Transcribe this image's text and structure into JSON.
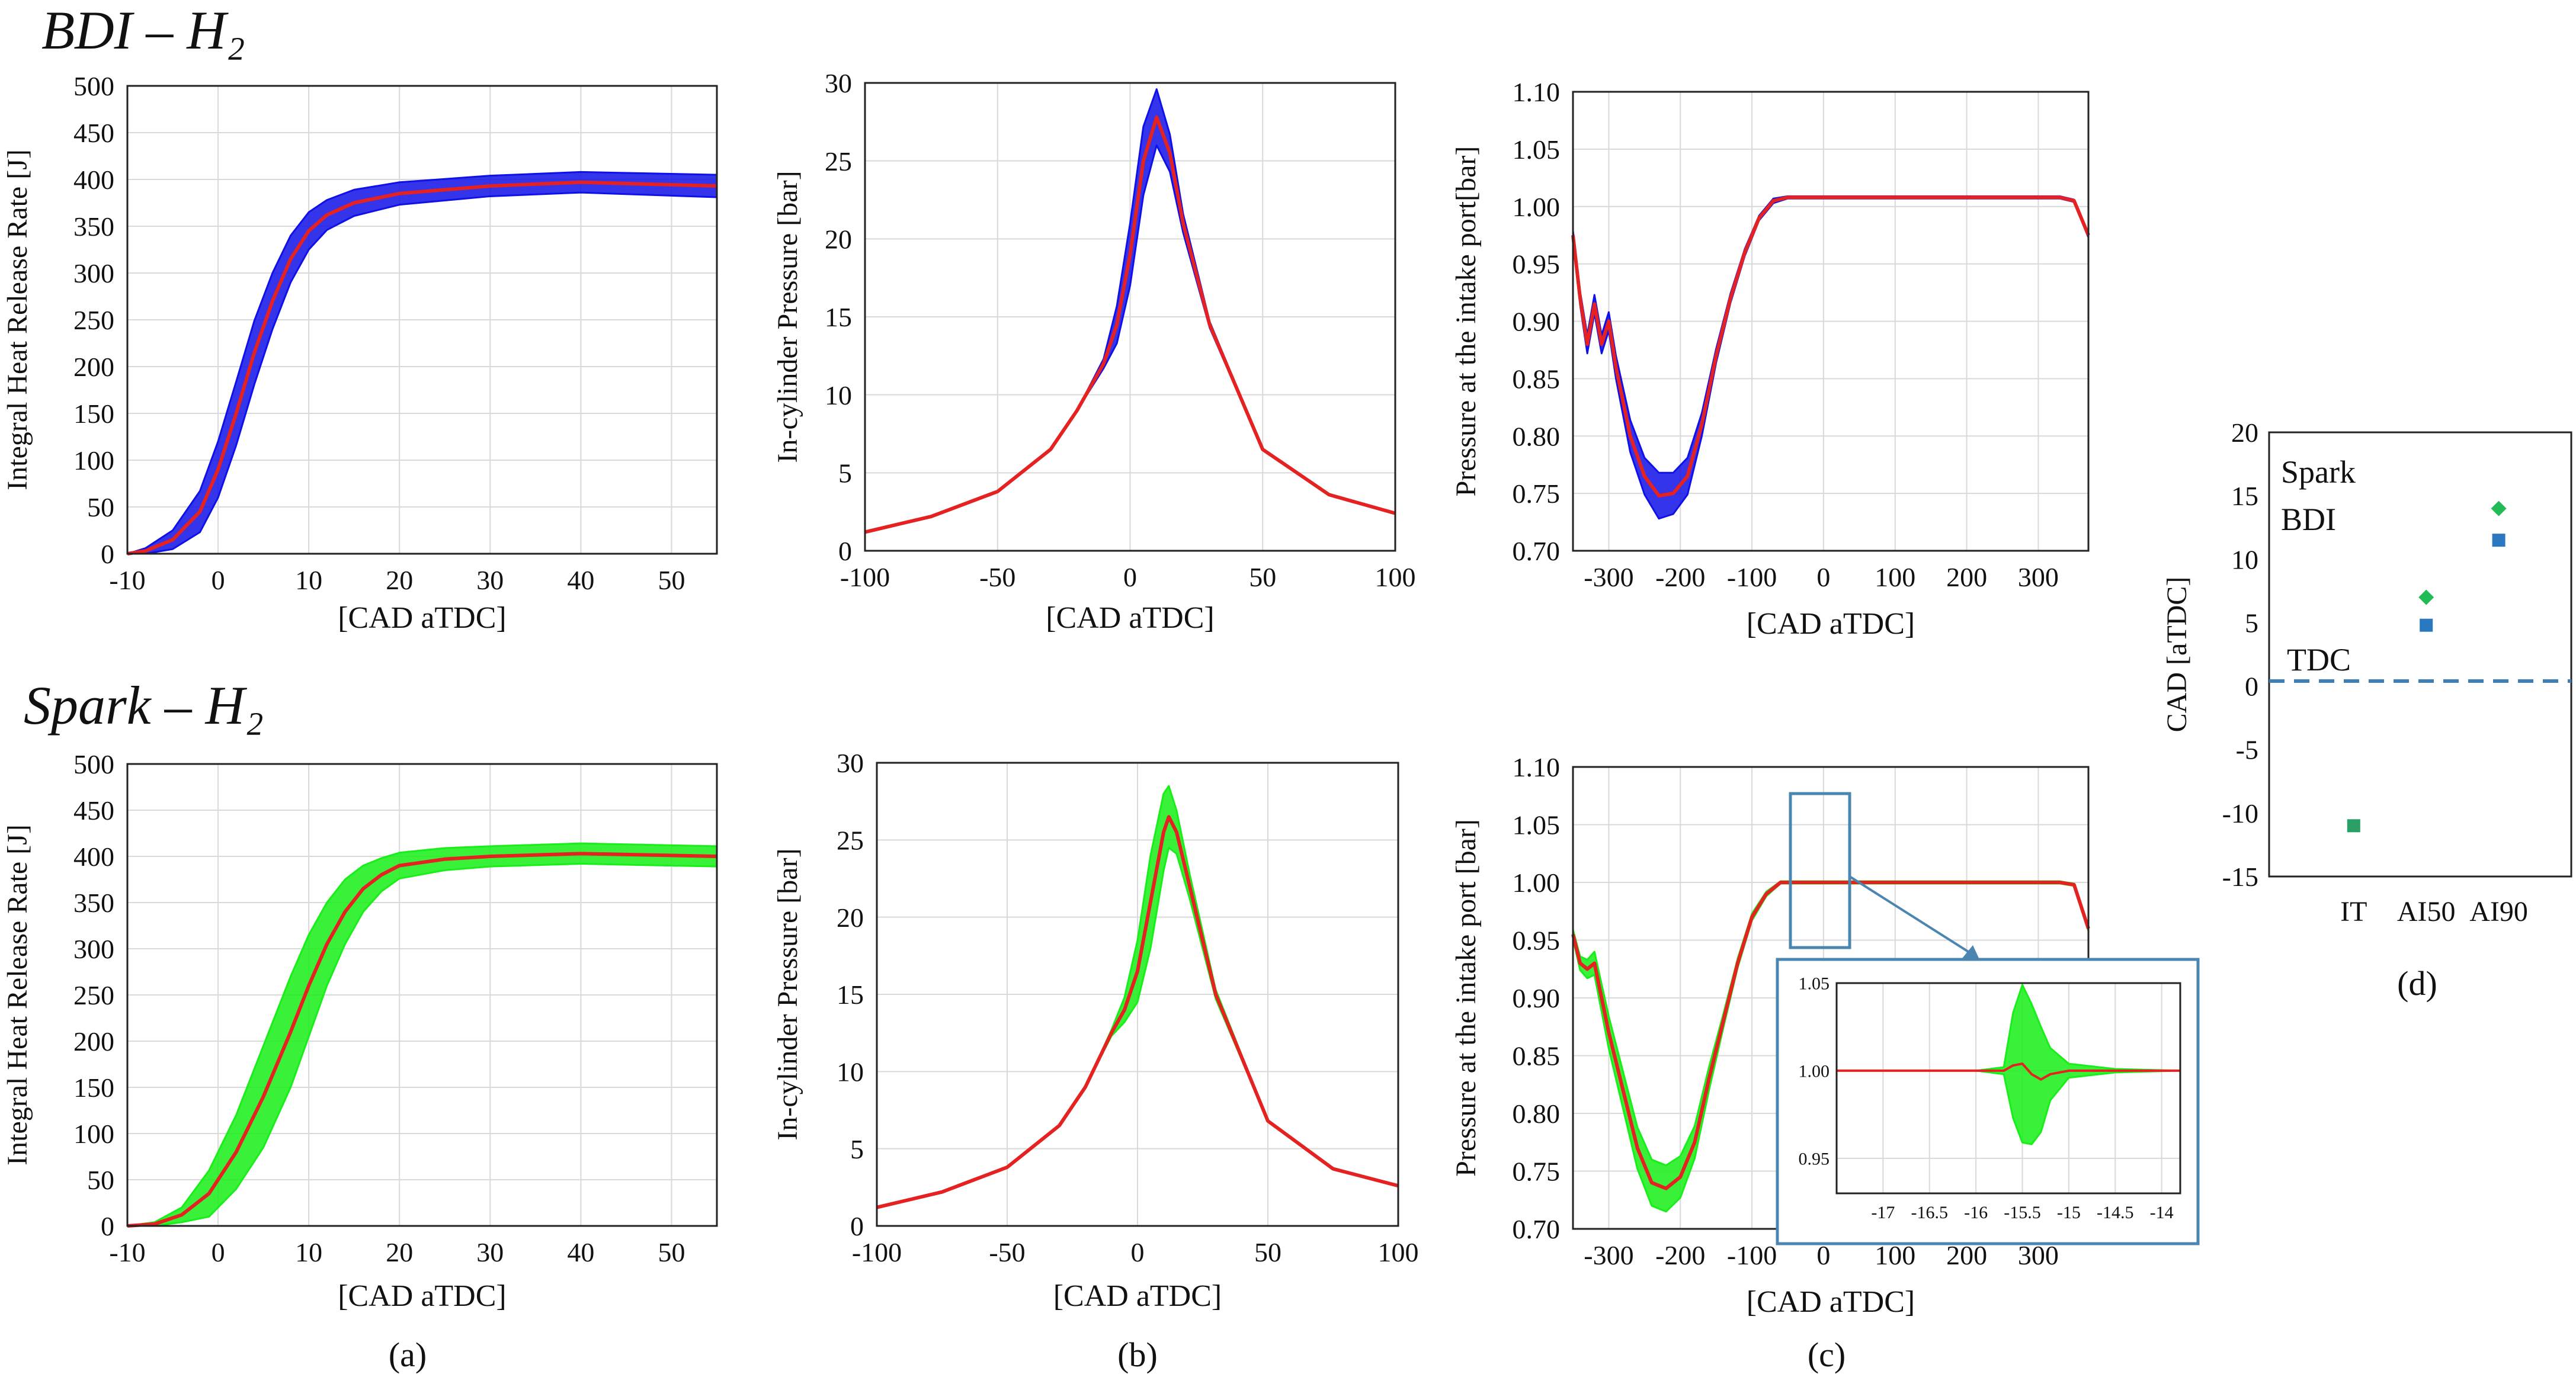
{
  "colors": {
    "bdi_band": "#1010e8",
    "spark_band": "#18ee18",
    "mean_line": "#e52222",
    "spark_title": "#27c84a",
    "bdi_title": "#2a6fb8",
    "tdc_line": "#3d7fb6",
    "inset_frame": "#4b86b0"
  },
  "rows": {
    "bdi_title": "BDI – H₂",
    "spark_title": "Spark – H₂"
  },
  "captions": [
    "(a)",
    "(b)",
    "(c)",
    "(d)"
  ],
  "chart_data": [
    {
      "id": "bdi_heat",
      "type": "line",
      "band": "bdi",
      "xlabel": "[CAD aTDC]",
      "ylabel": "Integral Heat Release Rate [J]",
      "xlim": [
        -10,
        55
      ],
      "ylim": [
        0,
        500
      ],
      "xticks": [
        -10,
        0,
        10,
        20,
        30,
        40,
        50
      ],
      "yticks": [
        0,
        50,
        100,
        150,
        200,
        250,
        300,
        350,
        400,
        450,
        500
      ],
      "series": [
        {
          "name": "mean",
          "x": [
            -10,
            -8,
            -5,
            -2,
            0,
            2,
            4,
            6,
            8,
            10,
            12,
            15,
            20,
            30,
            40,
            55
          ],
          "y": [
            0,
            3,
            15,
            45,
            90,
            150,
            215,
            270,
            315,
            345,
            362,
            375,
            385,
            393,
            397,
            393
          ]
        }
      ],
      "band_spread": [
        0,
        3,
        10,
        22,
        30,
        34,
        34,
        30,
        25,
        20,
        16,
        14,
        12,
        11,
        11,
        12
      ]
    },
    {
      "id": "bdi_pressure",
      "type": "line",
      "band": "bdi",
      "xlabel": "[CAD aTDC]",
      "ylabel": "In-cylinder Pressure [bar]",
      "xlim": [
        -100,
        100
      ],
      "ylim": [
        0,
        30
      ],
      "xticks": [
        -100,
        -50,
        0,
        50,
        100
      ],
      "yticks": [
        0,
        5,
        10,
        15,
        20,
        25,
        30
      ],
      "series": [
        {
          "name": "mean",
          "x": [
            -100,
            -75,
            -50,
            -30,
            -20,
            -10,
            -5,
            0,
            5,
            10,
            15,
            20,
            30,
            50,
            75,
            100
          ],
          "y": [
            1.2,
            2.2,
            3.8,
            6.5,
            9,
            12,
            14.5,
            19,
            25,
            27.8,
            25.5,
            21,
            14.5,
            6.5,
            3.6,
            2.4
          ]
        }
      ],
      "band_spread": [
        0,
        0,
        0,
        0,
        0,
        0.3,
        1.2,
        2,
        2.2,
        1.8,
        1.2,
        0.6,
        0.2,
        0,
        0,
        0
      ]
    },
    {
      "id": "bdi_intake",
      "type": "line",
      "band": "bdi",
      "xlabel": "[CAD aTDC]",
      "ylabel": "Pressure at the intake port[bar]",
      "xlim": [
        -350,
        370
      ],
      "ylim": [
        0.7,
        1.1
      ],
      "xticks": [
        -300,
        -200,
        -100,
        0,
        100,
        200,
        300
      ],
      "yticks": [
        0.7,
        0.75,
        0.8,
        0.85,
        0.9,
        0.95,
        1.0,
        1.05,
        1.1
      ],
      "series": [
        {
          "name": "mean",
          "x": [
            -350,
            -340,
            -330,
            -320,
            -310,
            -300,
            -290,
            -270,
            -250,
            -230,
            -210,
            -190,
            -170,
            -150,
            -130,
            -110,
            -90,
            -70,
            -50,
            100,
            200,
            330,
            350,
            370
          ],
          "y": [
            0.975,
            0.92,
            0.88,
            0.915,
            0.88,
            0.9,
            0.86,
            0.8,
            0.765,
            0.748,
            0.75,
            0.765,
            0.81,
            0.87,
            0.92,
            0.96,
            0.99,
            1.005,
            1.008,
            1.008,
            1.008,
            1.008,
            1.005,
            0.975
          ]
        }
      ],
      "band_spread": [
        0.004,
        0.006,
        0.008,
        0.008,
        0.008,
        0.008,
        0.01,
        0.014,
        0.016,
        0.02,
        0.018,
        0.016,
        0.01,
        0.006,
        0.004,
        0.003,
        0.002,
        0.002,
        0.001,
        0.001,
        0.001,
        0.001,
        0.001,
        0.002
      ]
    },
    {
      "id": "spark_heat",
      "type": "line",
      "band": "spark",
      "xlabel": "[CAD aTDC]",
      "ylabel": "Integral Heat Release Rate [J]",
      "xlim": [
        -10,
        55
      ],
      "ylim": [
        0,
        500
      ],
      "xticks": [
        -10,
        0,
        10,
        20,
        30,
        40,
        50
      ],
      "yticks": [
        0,
        50,
        100,
        150,
        200,
        250,
        300,
        350,
        400,
        450,
        500
      ],
      "series": [
        {
          "name": "mean",
          "x": [
            -10,
            -7,
            -4,
            -1,
            2,
            5,
            8,
            10,
            12,
            14,
            16,
            18,
            20,
            25,
            30,
            40,
            55
          ],
          "y": [
            0,
            2,
            12,
            35,
            80,
            140,
            210,
            260,
            305,
            340,
            365,
            380,
            390,
            397,
            400,
            403,
            400
          ]
        }
      ],
      "band_spread": [
        0,
        2,
        8,
        25,
        40,
        55,
        60,
        55,
        45,
        35,
        25,
        18,
        14,
        12,
        11,
        11,
        11
      ]
    },
    {
      "id": "spark_pressure",
      "type": "line",
      "band": "spark",
      "xlabel": "[CAD aTDC]",
      "ylabel": "In-cylinder Pressure [bar]",
      "xlim": [
        -100,
        100
      ],
      "ylim": [
        0,
        30
      ],
      "xticks": [
        -100,
        -50,
        0,
        50,
        100
      ],
      "yticks": [
        0,
        5,
        10,
        15,
        20,
        25,
        30
      ],
      "series": [
        {
          "name": "mean",
          "x": [
            -100,
            -75,
            -50,
            -30,
            -20,
            -10,
            -5,
            0,
            5,
            10,
            12,
            15,
            20,
            30,
            50,
            75,
            100
          ],
          "y": [
            1.2,
            2.2,
            3.8,
            6.5,
            9,
            12.5,
            14,
            16.5,
            21,
            25.5,
            26.5,
            25.5,
            22,
            15,
            6.8,
            3.7,
            2.6
          ]
        }
      ],
      "band_spread": [
        0,
        0,
        0,
        0,
        0,
        0.2,
        0.8,
        2,
        3,
        2.5,
        2,
        1.4,
        0.8,
        0.3,
        0,
        0,
        0
      ]
    },
    {
      "id": "spark_intake",
      "type": "line",
      "band": "spark",
      "xlabel": "[CAD aTDC]",
      "ylabel": "Pressure at the intake port [bar]",
      "xlim": [
        -350,
        370
      ],
      "ylim": [
        0.7,
        1.1
      ],
      "xticks": [
        -300,
        -200,
        -100,
        0,
        100,
        200,
        300
      ],
      "yticks": [
        0.7,
        0.75,
        0.8,
        0.85,
        0.9,
        0.95,
        1.0,
        1.05,
        1.1
      ],
      "series": [
        {
          "name": "mean",
          "x": [
            -350,
            -340,
            -330,
            -320,
            -310,
            -300,
            -280,
            -260,
            -240,
            -220,
            -200,
            -180,
            -160,
            -140,
            -120,
            -100,
            -80,
            -60,
            -40,
            100,
            200,
            330,
            350,
            370
          ],
          "y": [
            0.955,
            0.93,
            0.925,
            0.93,
            0.9,
            0.87,
            0.82,
            0.77,
            0.74,
            0.735,
            0.745,
            0.775,
            0.83,
            0.88,
            0.93,
            0.97,
            0.99,
            1.0,
            1.0,
            1.0,
            1.0,
            1.0,
            0.998,
            0.96
          ]
        }
      ],
      "band_spread": [
        0.004,
        0.006,
        0.008,
        0.01,
        0.012,
        0.014,
        0.016,
        0.018,
        0.02,
        0.02,
        0.018,
        0.014,
        0.01,
        0.006,
        0.004,
        0.003,
        0.002,
        0.001,
        0.001,
        0.001,
        0.001,
        0.001,
        0.001,
        0.002
      ]
    },
    {
      "id": "spark_intake_zoom",
      "type": "line",
      "band": "spark",
      "xlabel": "",
      "ylabel": "",
      "xlim": [
        -17.5,
        -13.8
      ],
      "ylim": [
        0.93,
        1.05
      ],
      "xticks": [
        -17,
        -16.5,
        -16,
        -15.5,
        -15,
        -14.5,
        -14
      ],
      "yticks": [
        0.95,
        1.0,
        1.05
      ],
      "series": [
        {
          "name": "mean",
          "x": [
            -17.5,
            -16,
            -15.7,
            -15.6,
            -15.5,
            -15.4,
            -15.3,
            -15.2,
            -15.0,
            -14.5,
            -13.8
          ],
          "y": [
            1.0,
            1.0,
            1.0,
            1.003,
            1.004,
            0.998,
            0.995,
            0.998,
            1.0,
            1.0,
            1.0
          ]
        }
      ],
      "band_spread": [
        0,
        0,
        0.002,
        0.03,
        0.045,
        0.04,
        0.03,
        0.015,
        0.004,
        0.001,
        0
      ]
    },
    {
      "id": "timing",
      "type": "scatter",
      "xlabel": "",
      "ylabel": "CAD [aTDC]",
      "categories": [
        "IT",
        "AI50",
        "AI90"
      ],
      "ylim": [
        -15,
        20
      ],
      "yticks": [
        -15,
        -10,
        -5,
        0,
        5,
        10,
        15,
        20
      ],
      "legend": [
        {
          "label": "Spark",
          "color": "#22cc44"
        },
        {
          "label": "BDI",
          "color": "#2a78c0"
        }
      ],
      "annotation": "TDC",
      "series": [
        {
          "name": "IT",
          "category": "IT",
          "value": -11,
          "marker": "square",
          "color": "#2aa066"
        },
        {
          "name": "Spark",
          "category": "AI50",
          "value": 7,
          "marker": "diamond",
          "color": "#22bb55"
        },
        {
          "name": "BDI",
          "category": "AI50",
          "value": 4.8,
          "marker": "square",
          "color": "#2a78c0"
        },
        {
          "name": "Spark",
          "category": "AI90",
          "value": 14,
          "marker": "diamond",
          "color": "#22bb55"
        },
        {
          "name": "BDI",
          "category": "AI90",
          "value": 11.5,
          "marker": "square",
          "color": "#2a78c0"
        }
      ],
      "tdc_line": 0.4
    }
  ]
}
